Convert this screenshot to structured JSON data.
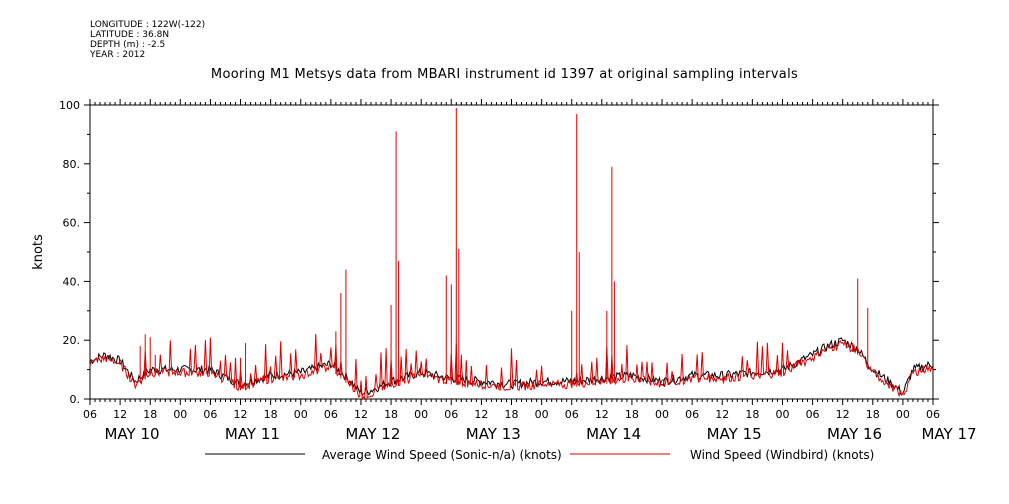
{
  "meta": {
    "longitude": "LONGITUDE : 122W(-122)",
    "latitude": "LATITUDE : 36.8N",
    "depth": "DEPTH (m) : -2.5",
    "year": "YEAR : 2012"
  },
  "chart_data": {
    "type": "line",
    "title": "Mooring M1 Metsys data from MBARI instrument id 1397 at original sampling intervals",
    "ylabel": "knots",
    "ylim": [
      0,
      100
    ],
    "xlim_hours": [
      0,
      168
    ],
    "y_ticks": [
      "0.",
      "20.",
      "40.",
      "60.",
      "80.",
      "100"
    ],
    "x_ticks": [
      "06",
      "12",
      "18",
      "00",
      "06",
      "12",
      "18",
      "00",
      "06",
      "12",
      "18",
      "00",
      "06",
      "12",
      "18",
      "00",
      "06",
      "12",
      "18",
      "00",
      "06",
      "12",
      "18",
      "00",
      "06",
      "12",
      "18",
      "00",
      "06"
    ],
    "day_labels": [
      "MAY 10",
      "MAY 11",
      "MAY 12",
      "MAY 13",
      "MAY 14",
      "MAY 15",
      "MAY 16",
      "MAY 17"
    ],
    "grid": false,
    "legend_position": "bottom",
    "series": [
      {
        "name": "Average Wind Speed (Sonic-n/a) (knots)",
        "color": "#000000",
        "x_hours": [
          0,
          3,
          6,
          9,
          12,
          18,
          24,
          30,
          36,
          42,
          48,
          52,
          54,
          56,
          60,
          66,
          72,
          78,
          84,
          90,
          96,
          102,
          108,
          114,
          120,
          126,
          132,
          138,
          144,
          147,
          150,
          153,
          156,
          160,
          162,
          164,
          168
        ],
        "values": [
          13,
          15,
          13,
          6,
          10,
          10,
          10,
          5,
          8,
          9,
          12,
          6,
          2,
          3,
          6,
          9,
          7,
          6,
          5,
          6,
          6,
          7,
          8,
          6,
          8,
          8,
          9,
          10,
          15,
          18,
          20,
          17,
          10,
          5,
          2,
          10,
          12
        ]
      },
      {
        "name": "Wind Speed (Windbird) (knots)",
        "color": "#dd0000",
        "spikes": [
          {
            "x": 10,
            "v": 18
          },
          {
            "x": 11,
            "v": 22
          },
          {
            "x": 12,
            "v": 21
          },
          {
            "x": 13,
            "v": 15
          },
          {
            "x": 30,
            "v": 14
          },
          {
            "x": 31,
            "v": 19
          },
          {
            "x": 49,
            "v": 23
          },
          {
            "x": 50,
            "v": 36
          },
          {
            "x": 51,
            "v": 44
          },
          {
            "x": 60,
            "v": 32
          },
          {
            "x": 61,
            "v": 91
          },
          {
            "x": 61.5,
            "v": 47
          },
          {
            "x": 71,
            "v": 42
          },
          {
            "x": 72,
            "v": 39
          },
          {
            "x": 73,
            "v": 99
          },
          {
            "x": 73.5,
            "v": 51
          },
          {
            "x": 96,
            "v": 30
          },
          {
            "x": 97,
            "v": 97
          },
          {
            "x": 97.5,
            "v": 50
          },
          {
            "x": 103,
            "v": 30
          },
          {
            "x": 104,
            "v": 79
          },
          {
            "x": 104.5,
            "v": 40
          },
          {
            "x": 152,
            "v": 19
          },
          {
            "x": 153,
            "v": 41
          },
          {
            "x": 155,
            "v": 31
          }
        ]
      }
    ]
  }
}
